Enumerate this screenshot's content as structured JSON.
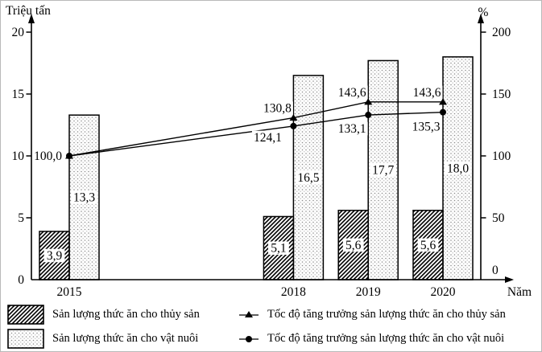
{
  "chart_data": {
    "type": "bar+line",
    "categories": [
      "2015",
      "2018",
      "2019",
      "2020"
    ],
    "years": [
      2015,
      2018,
      2019,
      2020
    ],
    "left_axis": {
      "title": "Triệu tấn",
      "min": 0,
      "max": 20,
      "ticks": [
        0,
        5,
        10,
        15,
        20
      ]
    },
    "right_axis": {
      "title": "%",
      "min": 0,
      "max": 200,
      "ticks": [
        0,
        50,
        100,
        150,
        200
      ]
    },
    "x_title": "Năm",
    "grid": false,
    "legend_position": "bottom",
    "bar_series": [
      {
        "name": "Sản lượng thức ăn cho thủy sản",
        "pattern": "hatch",
        "values": [
          3.9,
          5.1,
          5.6,
          5.6
        ],
        "labels": [
          "3,9",
          "5,1",
          "5,6",
          "5,6"
        ]
      },
      {
        "name": "Sản lượng thức ăn cho vật nuôi",
        "pattern": "dots",
        "values": [
          13.3,
          16.5,
          17.7,
          18.0
        ],
        "labels": [
          "13,3",
          "16,5",
          "17,7",
          "18,0"
        ]
      }
    ],
    "line_series": [
      {
        "name": "Tốc độ tăng trưởng sản lượng thức ăn cho thủy sản",
        "marker": "triangle",
        "values": [
          100.0,
          130.8,
          143.6,
          143.6
        ],
        "labels": [
          "100,0",
          "130,8",
          "143,6",
          "143,6"
        ]
      },
      {
        "name": "Tốc độ tăng trưởng sản lượng thức ăn cho vật nuôi",
        "marker": "circle",
        "values": [
          100.0,
          124.1,
          133.1,
          135.3
        ],
        "labels": [
          "",
          "124,1",
          "133,1",
          "135,3"
        ]
      }
    ],
    "colors": {
      "ink": "#000000",
      "background": "#ffffff",
      "dot_dark": "#8c8c8c",
      "dot_light": "#c8c8c8"
    }
  }
}
